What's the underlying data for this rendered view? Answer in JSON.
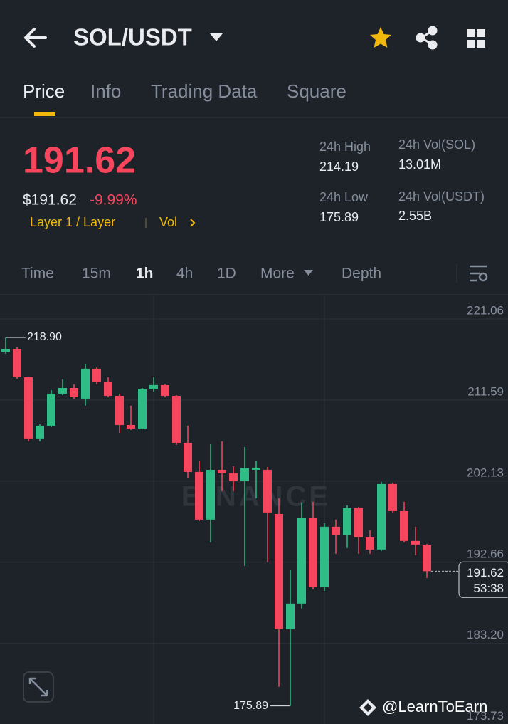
{
  "header": {
    "pair": "SOL/USDT"
  },
  "tabs": [
    "Price",
    "Info",
    "Trading Data",
    "Square"
  ],
  "price": {
    "last": "191.62",
    "fiat": "$191.62",
    "change": "-9.99%",
    "tag": "Layer 1 / Layer",
    "vol_link": "Vol"
  },
  "stats": [
    {
      "label": "24h High",
      "value": "214.19"
    },
    {
      "label": "24h Low",
      "value": "175.89"
    },
    {
      "label": "24h Vol(SOL)",
      "value": "13.01M"
    },
    {
      "label": "24h Vol(USDT)",
      "value": "2.55B"
    }
  ],
  "intervals": [
    "Time",
    "15m",
    "1h",
    "4h",
    "1D",
    "More",
    "Depth"
  ],
  "footer": {
    "watermark": "@LearnToEarn"
  },
  "chart_data": {
    "type": "candlestick",
    "watermark": "BINANCE",
    "up_color": "#2ebd85",
    "down_color": "#f6465d",
    "open": [
      217.24,
      217.57,
      214.25,
      207.11,
      208.6,
      212.34,
      213.0,
      211.76,
      215.25,
      213.75,
      212.09,
      208.68,
      208.27,
      212.92,
      213.34,
      212.09,
      206.61,
      203.2,
      197.64,
      203.45,
      203.04,
      202.12,
      203.45,
      203.45,
      198.3,
      184.85,
      187.84,
      197.8,
      189.75,
      196.81,
      195.81,
      198.97,
      195.56,
      194.15,
      201.79,
      198.63,
      195.15,
      194.65
    ],
    "high": [
      218.9,
      217.74,
      214.25,
      208.77,
      212.75,
      214.0,
      213.42,
      215.74,
      215.41,
      214.25,
      212.34,
      210.93,
      213.0,
      214.25,
      213.42,
      212.17,
      208.6,
      204.45,
      206.44,
      206.77,
      203.87,
      206.11,
      204.45,
      203.78,
      200.13,
      191.82,
      199.63,
      199.71,
      197.22,
      197.64,
      199.3,
      199.13,
      196.39,
      202.04,
      201.96,
      199.71,
      196.81,
      194.81
    ],
    "low": [
      216.99,
      214.08,
      206.77,
      206.77,
      208.43,
      212.17,
      211.76,
      210.93,
      213.42,
      211.92,
      207.77,
      208.1,
      208.19,
      212.59,
      211.92,
      206.36,
      202.45,
      197.47,
      194.98,
      200.96,
      200.96,
      192.24,
      200.13,
      192.65,
      178.12,
      175.89,
      187.26,
      189.5,
      189.33,
      193.65,
      194.32,
      193.65,
      193.65,
      193.98,
      198.47,
      194.98,
      193.48,
      190.83
    ],
    "close": [
      217.57,
      214.25,
      207.11,
      208.6,
      212.34,
      213.0,
      211.92,
      215.25,
      213.75,
      212.09,
      208.68,
      208.27,
      212.92,
      213.34,
      212.09,
      206.61,
      203.2,
      197.64,
      203.45,
      203.04,
      202.12,
      203.62,
      203.7,
      198.47,
      184.85,
      187.84,
      197.8,
      189.75,
      196.81,
      195.81,
      198.97,
      195.56,
      194.15,
      201.79,
      198.63,
      195.15,
      194.73,
      191.62
    ],
    "ylim": [
      173.7,
      223.8
    ],
    "yticks": [
      221.06,
      211.59,
      202.13,
      192.66,
      {
        "value": 183.2,
        "label": "183.20"
      },
      173.73
    ],
    "grid": true,
    "high_marker": {
      "value": 218.9,
      "label": "218.90"
    },
    "low_marker": 175.89,
    "last_price": 191.62,
    "countdown": "53:38"
  }
}
